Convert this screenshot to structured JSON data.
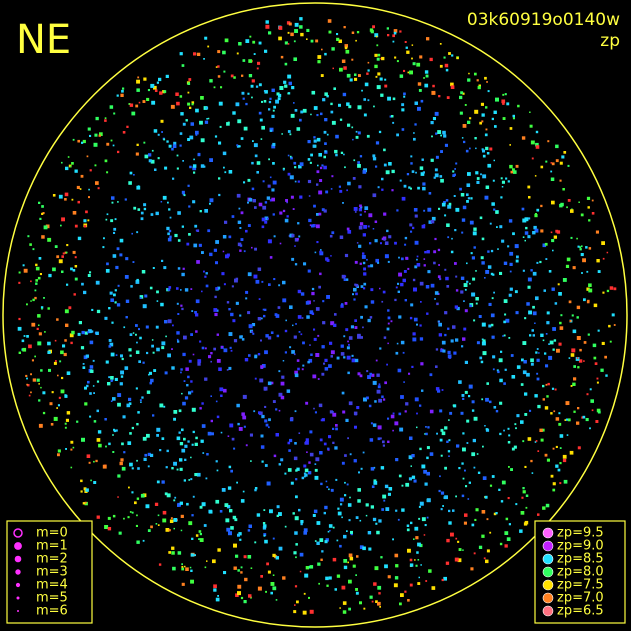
{
  "header": {
    "corner": "NE",
    "id": "03k60919o0140w",
    "label": "zp"
  },
  "magnitude_legend": [
    "m=0",
    "m=1",
    "m=2",
    "m=3",
    "m=4",
    "m=5",
    "m=6"
  ],
  "zp_legend": [
    {
      "label": "zp=9.5",
      "color": "#ff60ff"
    },
    {
      "label": "zp=9.0",
      "color": "#c020ff"
    },
    {
      "label": "zp=8.5",
      "color": "#20e0ff"
    },
    {
      "label": "zp=8.0",
      "color": "#30ff60"
    },
    {
      "label": "zp=7.5",
      "color": "#ffe000"
    },
    {
      "label": "zp=7.0",
      "color": "#ff8020"
    },
    {
      "label": "zp=6.5",
      "color": "#ff7080"
    }
  ]
}
